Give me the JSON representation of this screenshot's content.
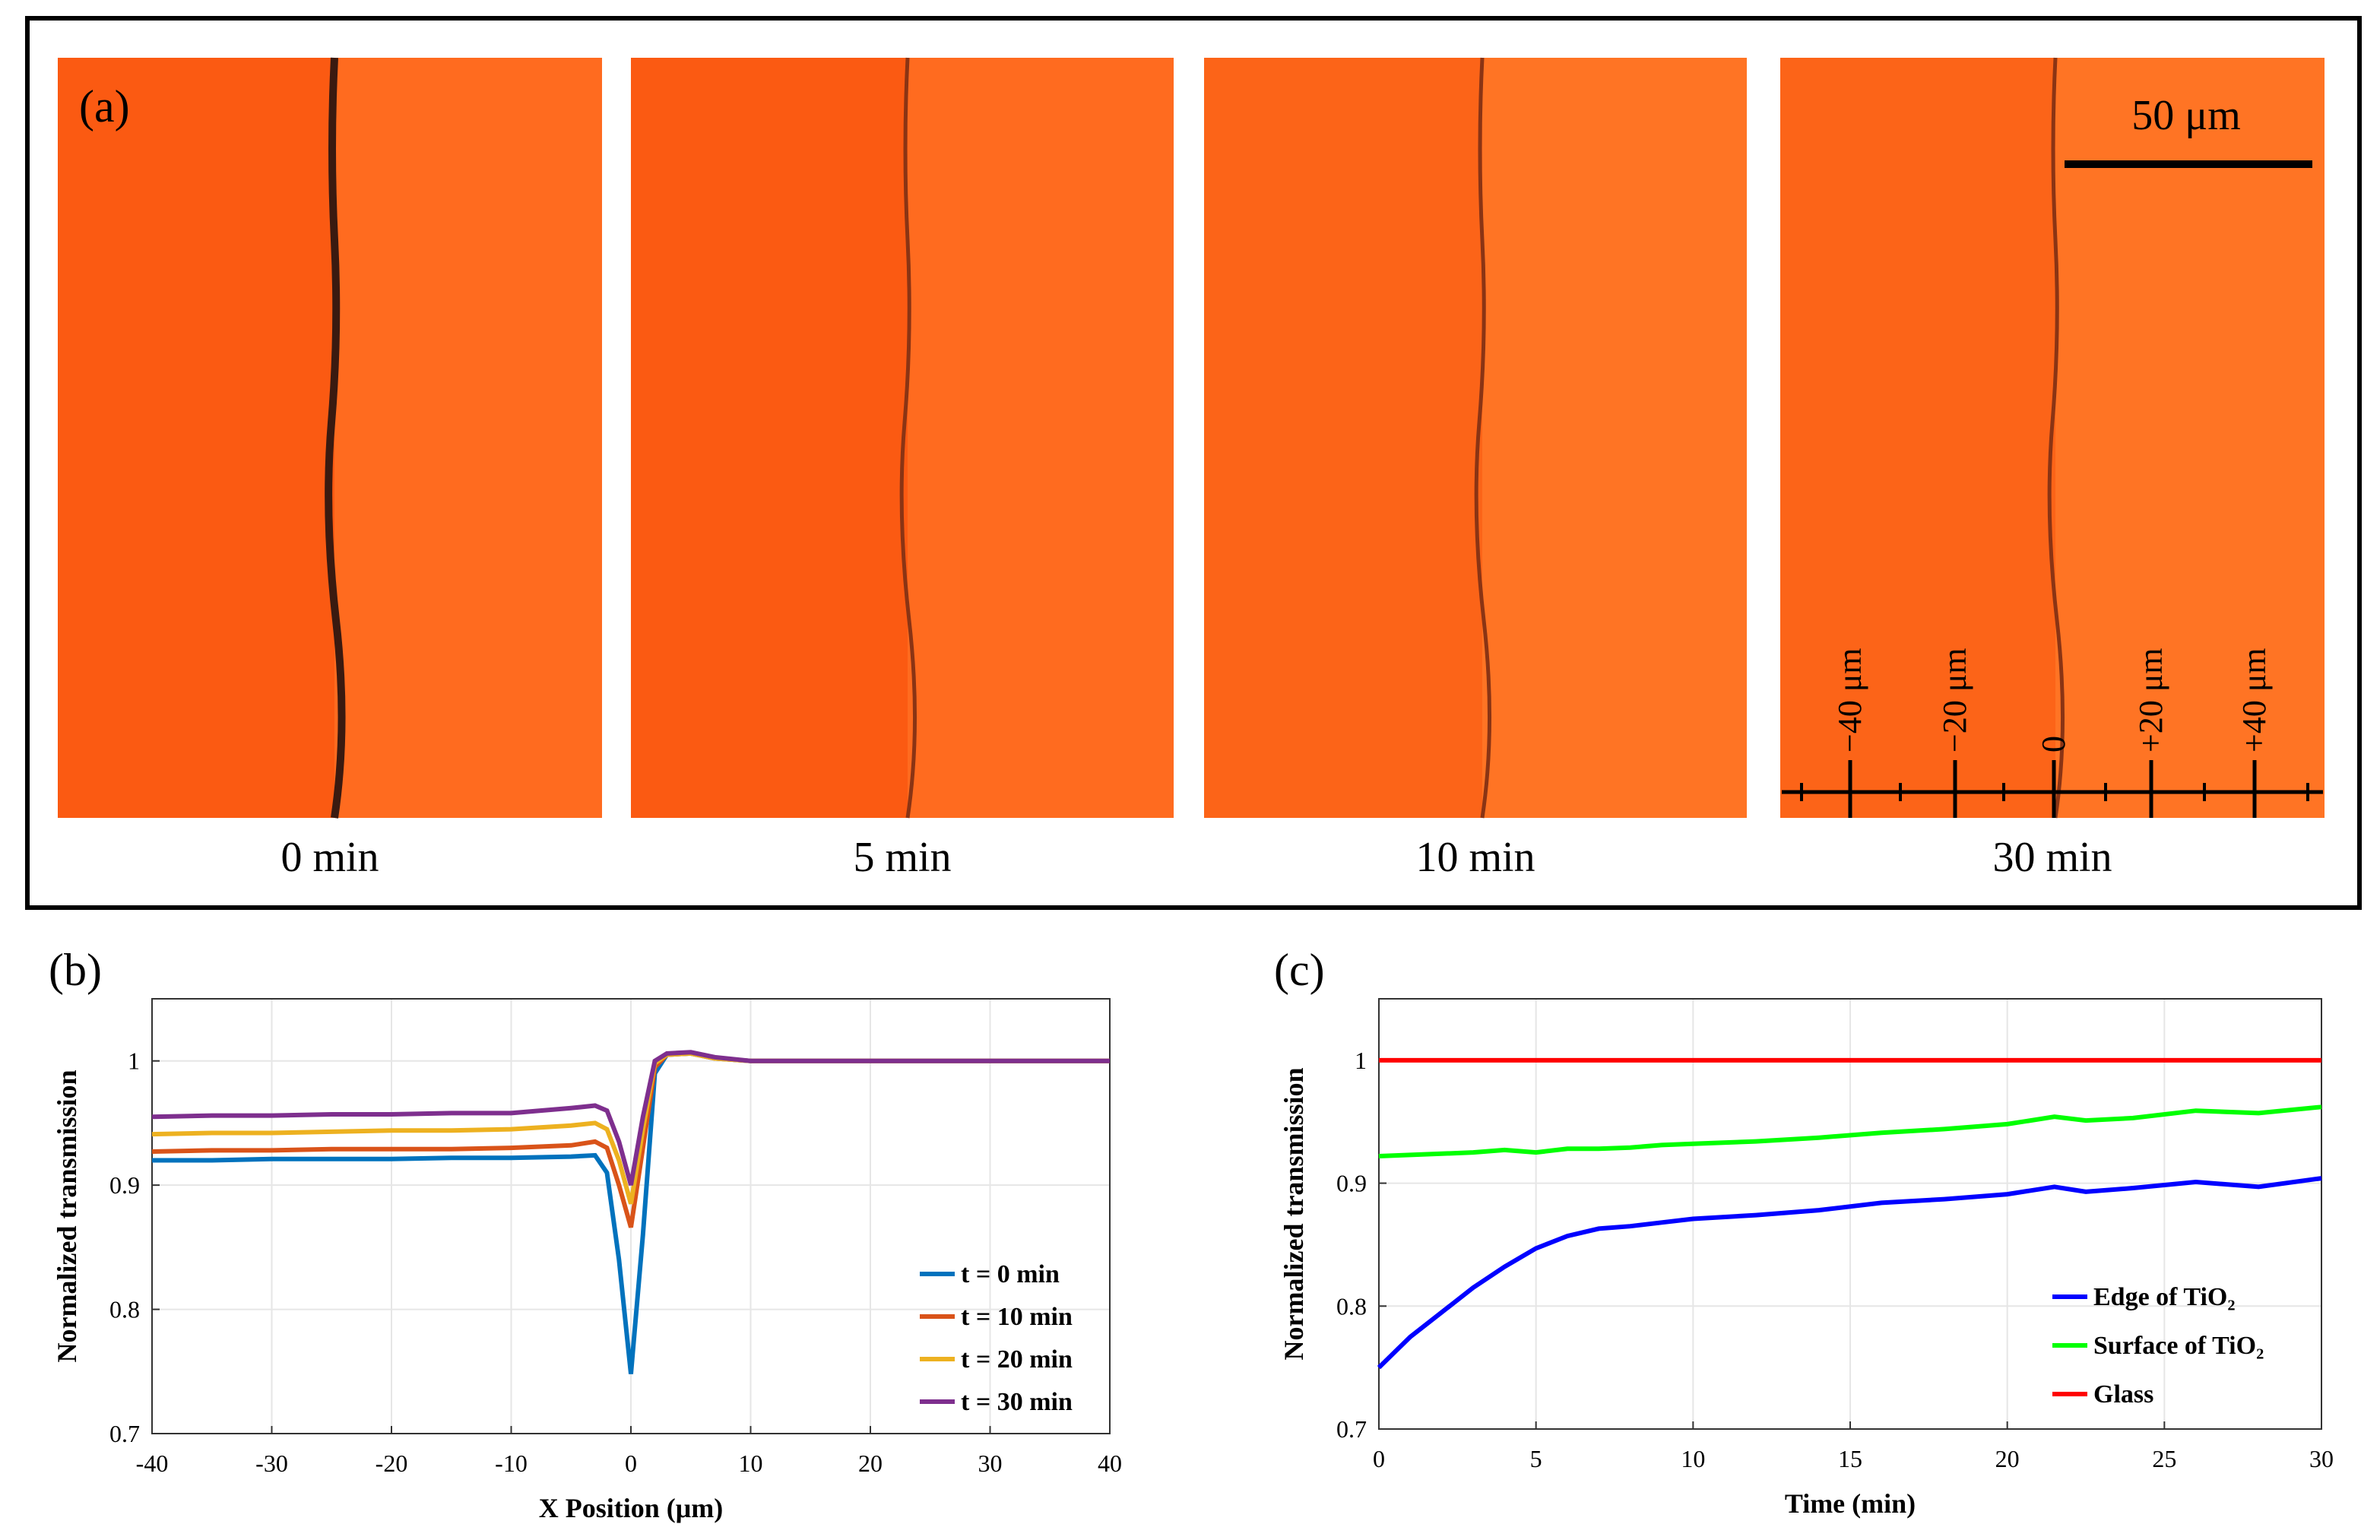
{
  "panel_a": {
    "label": "(a)",
    "captions": [
      "0 min",
      "5 min",
      "10 min",
      "30 min"
    ],
    "scale_bar": "50 μm",
    "ruler_labels": [
      "−40 μm",
      "−20 μm",
      "0",
      "+20 μm",
      "+40 μm"
    ]
  },
  "chart_data": [
    {
      "type": "line",
      "panel": "(b)",
      "xlabel": "X Position (μm)",
      "ylabel": "Normalized transmission",
      "x": [
        -40,
        -35,
        -30,
        -25,
        -20,
        -15,
        -10,
        -5,
        -3,
        -2,
        -1,
        0,
        1,
        2,
        3,
        5,
        7,
        10,
        15,
        20,
        25,
        30,
        35,
        40
      ],
      "series": [
        {
          "name": "t = 0 min",
          "color": "#0072bd",
          "values": [
            0.92,
            0.92,
            0.921,
            0.921,
            0.921,
            0.922,
            0.922,
            0.923,
            0.924,
            0.91,
            0.84,
            0.748,
            0.86,
            0.99,
            1.005,
            1.006,
            1.002,
            1.0,
            1.0,
            1.0,
            1.0,
            1.0,
            1.0,
            1.0
          ]
        },
        {
          "name": "t = 10 min",
          "color": "#d95319",
          "values": [
            0.927,
            0.928,
            0.928,
            0.929,
            0.929,
            0.929,
            0.93,
            0.932,
            0.935,
            0.93,
            0.9,
            0.866,
            0.93,
            0.995,
            1.005,
            1.006,
            1.002,
            1.0,
            1.0,
            1.0,
            1.0,
            1.0,
            1.0,
            1.0
          ]
        },
        {
          "name": "t = 20 min",
          "color": "#edb120",
          "values": [
            0.941,
            0.942,
            0.942,
            0.943,
            0.944,
            0.944,
            0.945,
            0.948,
            0.95,
            0.945,
            0.92,
            0.885,
            0.945,
            0.998,
            1.005,
            1.006,
            1.002,
            1.0,
            1.0,
            1.0,
            1.0,
            1.0,
            1.0,
            1.0
          ]
        },
        {
          "name": "t = 30 min",
          "color": "#7e2f8e",
          "values": [
            0.955,
            0.956,
            0.956,
            0.957,
            0.957,
            0.958,
            0.958,
            0.962,
            0.964,
            0.96,
            0.935,
            0.9,
            0.955,
            1.0,
            1.006,
            1.007,
            1.003,
            1.0,
            1.0,
            1.0,
            1.0,
            1.0,
            1.0,
            1.0
          ]
        }
      ],
      "xlim": [
        -40,
        40
      ],
      "xticks": [
        -40,
        -30,
        -20,
        -10,
        0,
        10,
        20,
        30,
        40
      ],
      "ylim": [
        0.7,
        1.05
      ],
      "yticks": [
        0.7,
        0.8,
        0.9,
        1
      ],
      "grid": true,
      "legend": "lower right"
    },
    {
      "type": "line",
      "panel": "(c)",
      "xlabel": "Time (min)",
      "ylabel": "Normalized transmission",
      "x": [
        0,
        1,
        2,
        3,
        4,
        5,
        6,
        7,
        8,
        9,
        10,
        12,
        14,
        16,
        18,
        20,
        21.5,
        22.5,
        24,
        26,
        28,
        30
      ],
      "series": [
        {
          "name": "Edge of TiO₂",
          "color": "#0000ff",
          "values": [
            0.75,
            0.775,
            0.795,
            0.815,
            0.832,
            0.847,
            0.857,
            0.863,
            0.865,
            0.868,
            0.871,
            0.874,
            0.878,
            0.884,
            0.887,
            0.891,
            0.897,
            0.893,
            0.896,
            0.901,
            0.897,
            0.904
          ]
        },
        {
          "name": "Surface of TiO₂",
          "color": "#00ff00",
          "values": [
            0.922,
            0.923,
            0.924,
            0.925,
            0.927,
            0.925,
            0.928,
            0.928,
            0.929,
            0.931,
            0.932,
            0.934,
            0.937,
            0.941,
            0.944,
            0.948,
            0.954,
            0.951,
            0.953,
            0.959,
            0.957,
            0.962
          ]
        },
        {
          "name": "Glass",
          "color": "#ff0000",
          "values": [
            1.0,
            1.0,
            1.0,
            1.0,
            1.0,
            1.0,
            1.0,
            1.0,
            1.0,
            1.0,
            1.0,
            1.0,
            1.0,
            1.0,
            1.0,
            1.0,
            1.0,
            1.0,
            1.0,
            1.0,
            1.0,
            1.0
          ]
        }
      ],
      "xlim": [
        0,
        30
      ],
      "xticks": [
        0,
        5,
        10,
        15,
        20,
        25,
        30
      ],
      "ylim": [
        0.7,
        1.05
      ],
      "yticks": [
        0.7,
        0.8,
        0.9,
        1
      ],
      "grid": true,
      "legend": "lower right"
    }
  ]
}
